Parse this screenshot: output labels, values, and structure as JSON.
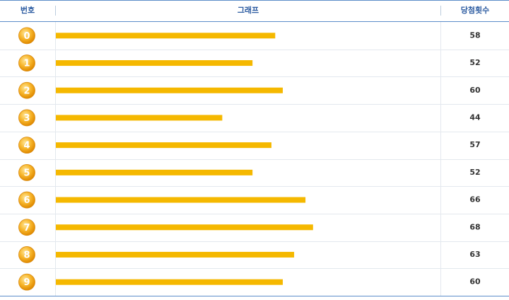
{
  "table": {
    "headers": [
      "번호",
      "그래프",
      "당첨횟수"
    ],
    "rows": [
      {
        "number": "0",
        "count": 58
      },
      {
        "number": "1",
        "count": 52
      },
      {
        "number": "2",
        "count": 60
      },
      {
        "number": "3",
        "count": 44
      },
      {
        "number": "4",
        "count": 57
      },
      {
        "number": "5",
        "count": 52
      },
      {
        "number": "6",
        "count": 66
      },
      {
        "number": "7",
        "count": 68
      },
      {
        "number": "8",
        "count": 63
      },
      {
        "number": "9",
        "count": 60
      }
    ],
    "bar_color": "#f5b800"
  }
}
